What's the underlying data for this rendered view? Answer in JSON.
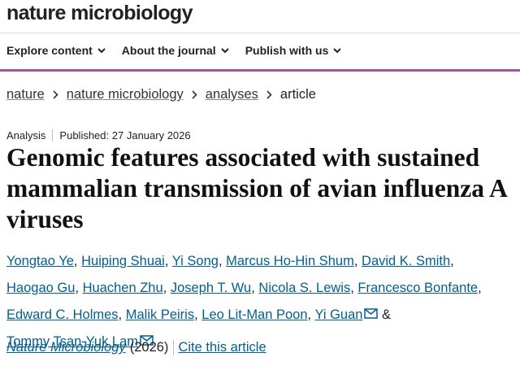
{
  "header": {
    "logo": "nature microbiology",
    "nav": [
      "Explore content",
      "About the journal",
      "Publish with us"
    ]
  },
  "breadcrumbs": [
    "nature",
    "nature microbiology",
    "analyses",
    "article"
  ],
  "article": {
    "type": "Analysis",
    "published_label": "Published:",
    "published_date": "27 January 2026",
    "title": "Genomic features associated with sustained mammalian transmission of avian influenza A viruses",
    "authors": [
      "Yongtao Ye",
      "Huiping Shuai",
      "Yi Song",
      "Marcus Ho-Hin Shum",
      "David K. Smith",
      "Haogao Gu",
      "Huachen Zhu",
      "Joseph T. Wu",
      "Nicola S. Lewis",
      "Francesco Bonfante",
      "Edward C. Holmes",
      "Malik Peiris",
      "Leo Lit-Man Poon",
      "Yi Guan",
      "Tommy Tsan-Yuk Lam"
    ],
    "separator": ",",
    "conjunction": "&",
    "citation": {
      "journal": "Nature Microbiology",
      "year": "(2026)",
      "cite_link": "Cite this article"
    }
  }
}
